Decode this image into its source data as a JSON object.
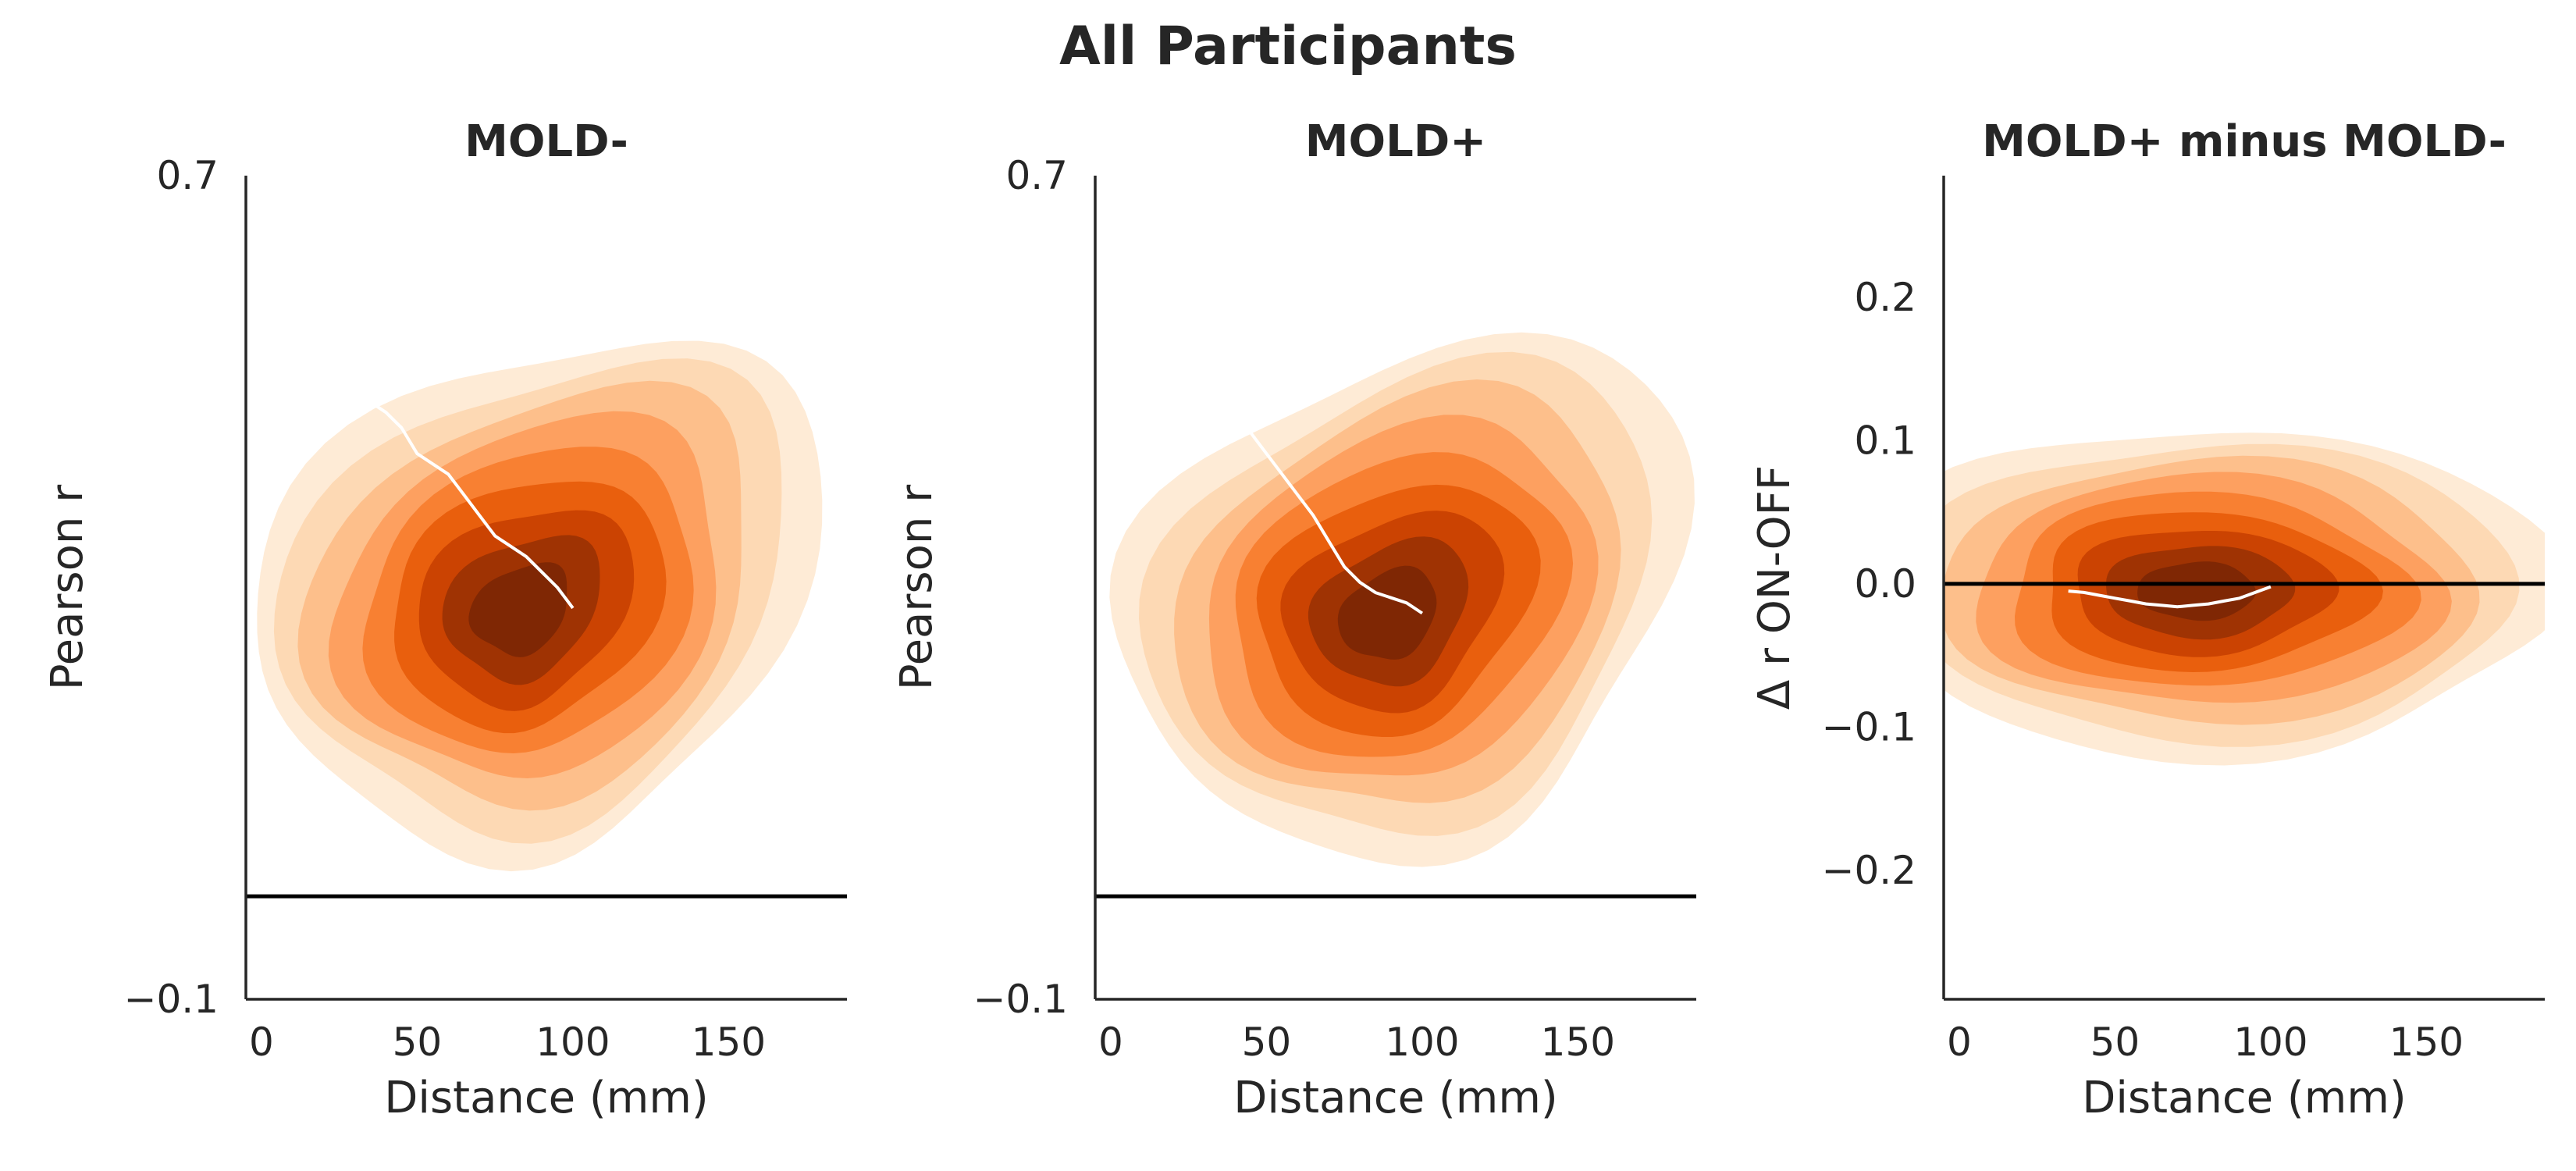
{
  "figure": {
    "suptitle": "All Participants"
  },
  "colors": {
    "kde_levels": [
      "#fff5eb",
      "#feebd6",
      "#fdd9b4",
      "#fdbf8b",
      "#fda060",
      "#f88032",
      "#e95f0d",
      "#cb4302",
      "#9f3303",
      "#7f2704"
    ],
    "trend_line": "#ffffff",
    "reference_line": "#000000",
    "axis": "#262626"
  },
  "chart_data": [
    {
      "type": "kde-contour",
      "title": "MOLD-",
      "xlabel": "Distance (mm)",
      "ylabel": "Pearson r",
      "xlim": [
        -5,
        188
      ],
      "ylim": [
        -0.1,
        0.7
      ],
      "xticks": [
        "0",
        "50",
        "100",
        "150"
      ],
      "yticks": [
        "−0.1",
        "0.7"
      ],
      "ytick_values": [
        -0.1,
        0.7
      ],
      "reference_line_y": 0.0,
      "kde": {
        "center": [
          82,
          0.275
        ],
        "spread_x": 30,
        "spread_y": 0.072,
        "tilt_deg": -35,
        "levels": 9
      },
      "trend": [
        [
          35,
          0.48
        ],
        [
          40,
          0.47
        ],
        [
          45,
          0.455
        ],
        [
          50,
          0.43
        ],
        [
          55,
          0.42
        ],
        [
          60,
          0.41
        ],
        [
          65,
          0.39
        ],
        [
          70,
          0.37
        ],
        [
          75,
          0.35
        ],
        [
          80,
          0.34
        ],
        [
          85,
          0.33
        ],
        [
          90,
          0.315
        ],
        [
          95,
          0.3
        ],
        [
          100,
          0.28
        ]
      ]
    },
    {
      "type": "kde-contour",
      "title": "MOLD+",
      "xlabel": "Distance (mm)",
      "ylabel": "Pearson r",
      "xlim": [
        -5,
        188
      ],
      "ylim": [
        -0.1,
        0.7
      ],
      "xticks": [
        "0",
        "50",
        "100",
        "150"
      ],
      "yticks": [
        "−0.1",
        "0.7"
      ],
      "ytick_values": [
        -0.1,
        0.7
      ],
      "reference_line_y": 0.0,
      "kde": {
        "center": [
          88,
          0.27
        ],
        "spread_x": 30,
        "spread_y": 0.072,
        "tilt_deg": -35,
        "levels": 9
      },
      "trend": [
        [
          35,
          0.475
        ],
        [
          40,
          0.465
        ],
        [
          45,
          0.45
        ],
        [
          50,
          0.43
        ],
        [
          55,
          0.41
        ],
        [
          60,
          0.39
        ],
        [
          65,
          0.37
        ],
        [
          70,
          0.345
        ],
        [
          75,
          0.32
        ],
        [
          80,
          0.305
        ],
        [
          85,
          0.295
        ],
        [
          90,
          0.29
        ],
        [
          95,
          0.285
        ],
        [
          100,
          0.275
        ]
      ]
    },
    {
      "type": "kde-contour",
      "title": "MOLD+ minus MOLD-",
      "xlabel": "Distance (mm)",
      "ylabel": "Δ r ON-OFF",
      "xlim": [
        -5,
        188
      ],
      "ylim": [
        -0.29,
        0.285
      ],
      "xticks": [
        "0",
        "50",
        "100",
        "150"
      ],
      "yticks": [
        "−0.2",
        "−0.1",
        "0.0",
        "0.1",
        "0.2"
      ],
      "ytick_values": [
        -0.2,
        -0.1,
        0.0,
        0.1,
        0.2
      ],
      "reference_line_y": 0.0,
      "kde": {
        "center": [
          75,
          -0.005
        ],
        "spread_x": 34,
        "spread_y": 0.036,
        "tilt_deg": 0,
        "levels": 9
      },
      "trend": [
        [
          35,
          -0.005
        ],
        [
          40,
          -0.006
        ],
        [
          45,
          -0.008
        ],
        [
          50,
          -0.01
        ],
        [
          55,
          -0.012
        ],
        [
          60,
          -0.014
        ],
        [
          65,
          -0.015
        ],
        [
          70,
          -0.016
        ],
        [
          75,
          -0.015
        ],
        [
          80,
          -0.014
        ],
        [
          85,
          -0.012
        ],
        [
          90,
          -0.01
        ],
        [
          95,
          -0.006
        ],
        [
          100,
          -0.002
        ]
      ]
    }
  ]
}
